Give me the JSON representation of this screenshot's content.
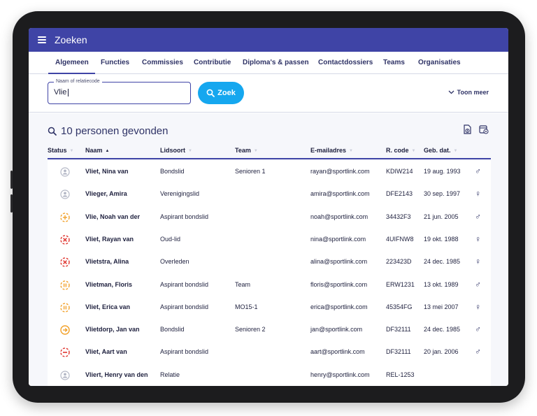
{
  "app": {
    "title": "Zoeken"
  },
  "tabs": [
    {
      "label": "Algemeen",
      "active": true
    },
    {
      "label": "Functies"
    },
    {
      "label": "Commissies"
    },
    {
      "label": "Contributie"
    },
    {
      "label": "Diploma's & passen"
    },
    {
      "label": "Contactdossiers"
    },
    {
      "label": "Teams"
    },
    {
      "label": "Organisaties"
    }
  ],
  "search": {
    "field_label": "Naam of relatiecode",
    "value": "Vlie",
    "button_label": "Zoek",
    "more_label": "Toon meer"
  },
  "results": {
    "summary": "10 personen gevonden"
  },
  "columns": [
    "Status",
    "Naam",
    "Lidsoort",
    "Team",
    "E-mailadres",
    "R. code",
    "Geb. dat."
  ],
  "sorted_column": "Naam",
  "colors": {
    "primary": "#3f44a6",
    "accent": "#15a7ef",
    "status_grey": "#b4b8c6",
    "status_orange": "#f2a12a",
    "status_red": "#e0352f"
  },
  "rows": [
    {
      "status": "inactive-grey",
      "name": "Vliet, Nina van",
      "lidsoort": "Bondslid",
      "team": "Senioren 1",
      "email": "rayan@sportlink.com",
      "rcode": "KDIW214",
      "gebdat": "19 aug. 1993",
      "gender": "male"
    },
    {
      "status": "inactive-grey",
      "name": "Vlieger, Amira",
      "lidsoort": "Verenigingslid",
      "team": "",
      "email": "amira@sportlink.com",
      "rcode": "DFE2143",
      "gebdat": "30 sep. 1997",
      "gender": "female"
    },
    {
      "status": "plus-orange",
      "name": "Vlie, Noah van der",
      "lidsoort": "Aspirant bondslid",
      "team": "",
      "email": "noah@sportlink.com",
      "rcode": "34432F3",
      "gebdat": "21 jun. 2005",
      "gender": "male"
    },
    {
      "status": "cross-red",
      "name": "Vliet, Rayan van",
      "lidsoort": "Oud-lid",
      "team": "",
      "email": "nina@sportlink.com",
      "rcode": "4UIFNW8",
      "gebdat": "19 okt. 1988",
      "gender": "female"
    },
    {
      "status": "cross-red",
      "name": "Vlietstra, Alina",
      "lidsoort": "Overleden",
      "team": "",
      "email": "alina@sportlink.com",
      "rcode": "223423D",
      "gebdat": "24 dec. 1985",
      "gender": "female"
    },
    {
      "status": "pause-orange",
      "name": "Vlietman, Floris",
      "lidsoort": "Aspirant bondslid",
      "team": "Team",
      "email": "floris@sportlink.com",
      "rcode": "ERW1231",
      "gebdat": "13 okt. 1989",
      "gender": "male"
    },
    {
      "status": "pause-orange",
      "name": "Vliet, Erica van",
      "lidsoort": "Aspirant bondslid",
      "team": "MO15-1",
      "email": "erica@sportlink.com",
      "rcode": "45354FG",
      "gebdat": "13 mei 2007",
      "gender": "female"
    },
    {
      "status": "arrow-orange",
      "name": "Vlietdorp, Jan van",
      "lidsoort": "Bondslid",
      "team": "Senioren 2",
      "email": "jan@sportlink.com",
      "rcode": "DF32111",
      "gebdat": "24 dec. 1985",
      "gender": "male"
    },
    {
      "status": "minus-red",
      "name": "Vliet, Aart van",
      "lidsoort": "Aspirant bondslid",
      "team": "",
      "email": "aart@sportlink.com",
      "rcode": "DF32111",
      "gebdat": "20 jan. 2006",
      "gender": "male"
    },
    {
      "status": "inactive-grey",
      "name": "Vliert, Henry van den",
      "lidsoort": "Relatie",
      "team": "",
      "email": "henry@sportlink.com",
      "rcode": "REL-1253",
      "gebdat": "",
      "gender": ""
    }
  ]
}
